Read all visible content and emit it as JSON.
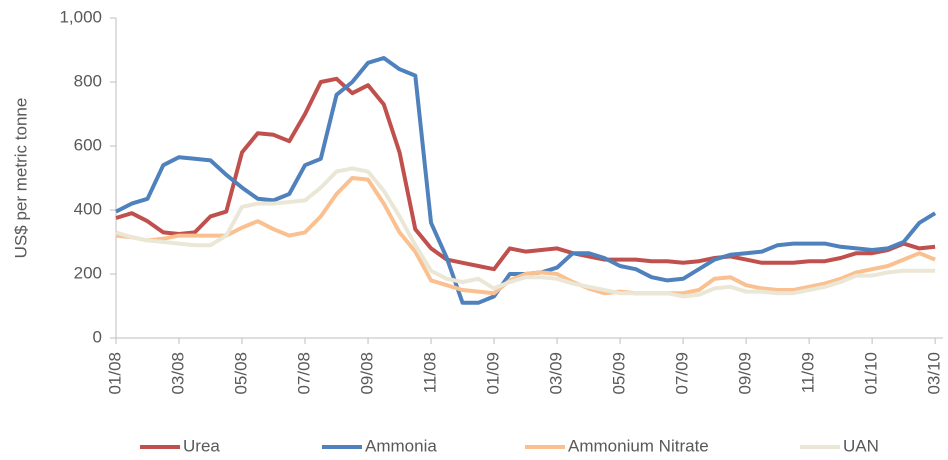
{
  "chart_data": {
    "type": "line",
    "y_label": "US$ per metric tonne",
    "x": [
      0,
      0.5,
      1,
      1.5,
      2,
      2.5,
      3,
      3.5,
      4,
      4.5,
      5,
      5.5,
      6,
      6.5,
      7,
      7.5,
      8,
      8.5,
      9,
      9.5,
      10,
      10.5,
      11,
      11.5,
      12,
      12.5,
      13,
      13.5,
      14,
      14.5,
      15,
      15.5,
      16,
      16.5,
      17,
      17.5,
      18,
      18.5,
      19,
      19.5,
      20,
      20.5,
      21,
      21.5,
      22,
      22.5,
      23,
      23.5,
      24,
      24.5,
      25,
      25.5,
      26
    ],
    "xlim": [
      0,
      26.25
    ],
    "xticks": [
      {
        "value": 0,
        "label": "01/08"
      },
      {
        "value": 2,
        "label": "03/08"
      },
      {
        "value": 4,
        "label": "05/08"
      },
      {
        "value": 6,
        "label": "07/08"
      },
      {
        "value": 8,
        "label": "09/08"
      },
      {
        "value": 10,
        "label": "11/08"
      },
      {
        "value": 12,
        "label": "01/09"
      },
      {
        "value": 14,
        "label": "03/09"
      },
      {
        "value": 16,
        "label": "05/09"
      },
      {
        "value": 18,
        "label": "07/09"
      },
      {
        "value": 20,
        "label": "09/09"
      },
      {
        "value": 22,
        "label": "11/09"
      },
      {
        "value": 24,
        "label": "01/10"
      },
      {
        "value": 26,
        "label": "03/10"
      }
    ],
    "ylim": [
      0,
      1000
    ],
    "yticks": [
      0,
      200,
      400,
      600,
      800,
      {
        "value": 1000,
        "label": "1,000"
      }
    ],
    "series": [
      {
        "name": "Urea",
        "color": "#c0504d",
        "values": [
          375,
          390,
          365,
          330,
          325,
          330,
          380,
          395,
          580,
          640,
          635,
          615,
          700,
          800,
          810,
          765,
          790,
          730,
          580,
          340,
          280,
          245,
          235,
          225,
          215,
          280,
          270,
          275,
          280,
          265,
          255,
          245,
          245,
          245,
          240,
          240,
          235,
          240,
          250,
          255,
          245,
          235,
          235,
          235,
          240,
          240,
          250,
          265,
          265,
          275,
          295,
          280,
          285
        ]
      },
      {
        "name": "Ammonia",
        "color": "#4f81bd",
        "values": [
          395,
          420,
          435,
          540,
          565,
          560,
          555,
          510,
          470,
          435,
          430,
          450,
          540,
          560,
          760,
          800,
          860,
          875,
          840,
          820,
          360,
          250,
          110,
          110,
          130,
          200,
          200,
          205,
          220,
          265,
          265,
          250,
          225,
          215,
          190,
          180,
          185,
          215,
          245,
          260,
          265,
          270,
          290,
          295,
          295,
          295,
          285,
          280,
          275,
          280,
          300,
          360,
          390
        ]
      },
      {
        "name": "Ammonium Nitrate",
        "color": "#fac090",
        "values": [
          320,
          315,
          305,
          310,
          320,
          320,
          320,
          320,
          345,
          365,
          340,
          320,
          330,
          380,
          450,
          500,
          495,
          420,
          330,
          270,
          180,
          165,
          150,
          145,
          140,
          180,
          200,
          205,
          200,
          175,
          155,
          140,
          145,
          140,
          140,
          140,
          140,
          150,
          185,
          190,
          165,
          155,
          150,
          150,
          160,
          170,
          185,
          205,
          215,
          225,
          245,
          265,
          245
        ]
      },
      {
        "name": "UAN",
        "color": "#ebe7d6",
        "values": [
          330,
          315,
          305,
          300,
          295,
          290,
          290,
          320,
          410,
          420,
          420,
          425,
          430,
          470,
          520,
          530,
          520,
          460,
          380,
          290,
          210,
          185,
          175,
          185,
          155,
          175,
          190,
          190,
          185,
          170,
          160,
          150,
          140,
          140,
          140,
          140,
          130,
          135,
          155,
          160,
          145,
          145,
          140,
          140,
          150,
          160,
          175,
          195,
          195,
          205,
          210,
          210,
          210
        ]
      }
    ]
  }
}
